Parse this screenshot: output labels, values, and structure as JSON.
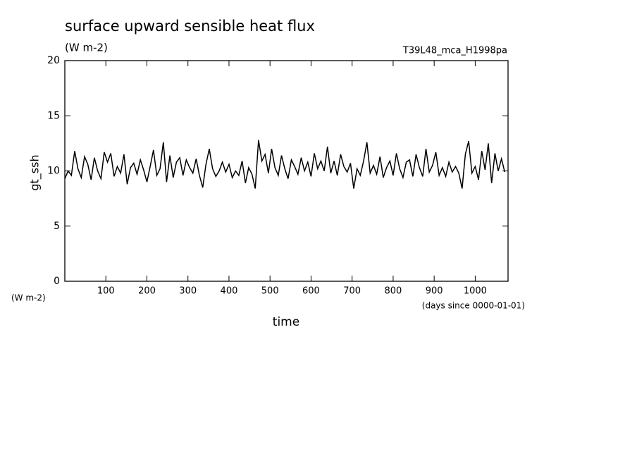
{
  "chart_data": {
    "type": "line",
    "title": "surface upward sensible heat flux",
    "subtitle": "(W m-2)",
    "annotation": "T39L48_mca_H1998pa",
    "y_label": "gt_ssh",
    "y_unit": "(W m-2)",
    "x_label": "time",
    "x_unit": "(days since 0000-01-01)",
    "xlim": [
      0,
      1080
    ],
    "ylim": [
      0,
      20
    ],
    "xticks": [
      100,
      200,
      300,
      400,
      500,
      600,
      700,
      800,
      900,
      1000
    ],
    "yticks": [
      0,
      5,
      10,
      15,
      20
    ],
    "series": [
      {
        "color": "#000000",
        "x": [
          0,
          8,
          16,
          24,
          32,
          40,
          48,
          56,
          64,
          72,
          80,
          88,
          96,
          104,
          112,
          120,
          128,
          136,
          144,
          152,
          160,
          168,
          176,
          184,
          192,
          200,
          208,
          216,
          224,
          232,
          240,
          248,
          256,
          264,
          272,
          280,
          288,
          296,
          304,
          312,
          320,
          328,
          336,
          344,
          352,
          360,
          368,
          376,
          384,
          392,
          400,
          408,
          416,
          424,
          432,
          440,
          448,
          456,
          464,
          472,
          480,
          488,
          496,
          504,
          512,
          520,
          528,
          536,
          544,
          552,
          560,
          568,
          576,
          584,
          592,
          600,
          608,
          616,
          624,
          632,
          640,
          648,
          656,
          664,
          672,
          680,
          688,
          696,
          704,
          712,
          720,
          728,
          736,
          744,
          752,
          760,
          768,
          776,
          784,
          792,
          800,
          808,
          816,
          824,
          832,
          840,
          848,
          856,
          864,
          872,
          880,
          888,
          896,
          904,
          912,
          920,
          928,
          936,
          944,
          952,
          960,
          968,
          976,
          984,
          992,
          1000,
          1008,
          1016,
          1024,
          1032,
          1040,
          1048,
          1056,
          1064,
          1072
        ],
        "values": [
          9.3,
          10.0,
          9.6,
          11.8,
          10.2,
          9.4,
          11.3,
          10.6,
          9.2,
          11.2,
          10.0,
          9.3,
          11.7,
          10.8,
          11.6,
          9.5,
          10.4,
          9.8,
          11.5,
          8.8,
          10.3,
          10.7,
          9.7,
          11.0,
          10.1,
          9.0,
          10.4,
          11.9,
          9.6,
          10.2,
          12.6,
          9.0,
          11.4,
          9.4,
          10.8,
          11.2,
          9.6,
          11.0,
          10.3,
          9.8,
          11.1,
          9.6,
          8.5,
          10.6,
          12.0,
          10.2,
          9.5,
          10.0,
          10.8,
          9.9,
          10.6,
          9.4,
          10.0,
          9.6,
          10.9,
          8.9,
          10.3,
          9.7,
          8.4,
          12.8,
          10.9,
          11.5,
          9.8,
          12.0,
          10.3,
          9.6,
          11.4,
          10.2,
          9.3,
          11.0,
          10.4,
          9.7,
          11.2,
          10.0,
          10.8,
          9.5,
          11.6,
          10.2,
          10.9,
          10.0,
          12.2,
          9.8,
          10.9,
          9.6,
          11.5,
          10.4,
          9.9,
          10.7,
          8.4,
          10.2,
          9.6,
          10.9,
          12.6,
          9.8,
          10.5,
          9.7,
          11.3,
          9.4,
          10.3,
          10.9,
          9.6,
          11.6,
          10.2,
          9.4,
          10.8,
          11.0,
          9.5,
          11.5,
          10.3,
          9.5,
          12.0,
          9.9,
          10.5,
          11.7,
          9.6,
          10.3,
          9.5,
          10.8,
          9.9,
          10.4,
          9.8,
          8.4,
          11.5,
          12.7,
          9.8,
          10.4,
          9.2,
          11.8,
          10.1,
          12.5,
          8.9,
          11.6,
          10.0,
          11.1,
          9.9
        ]
      }
    ]
  }
}
